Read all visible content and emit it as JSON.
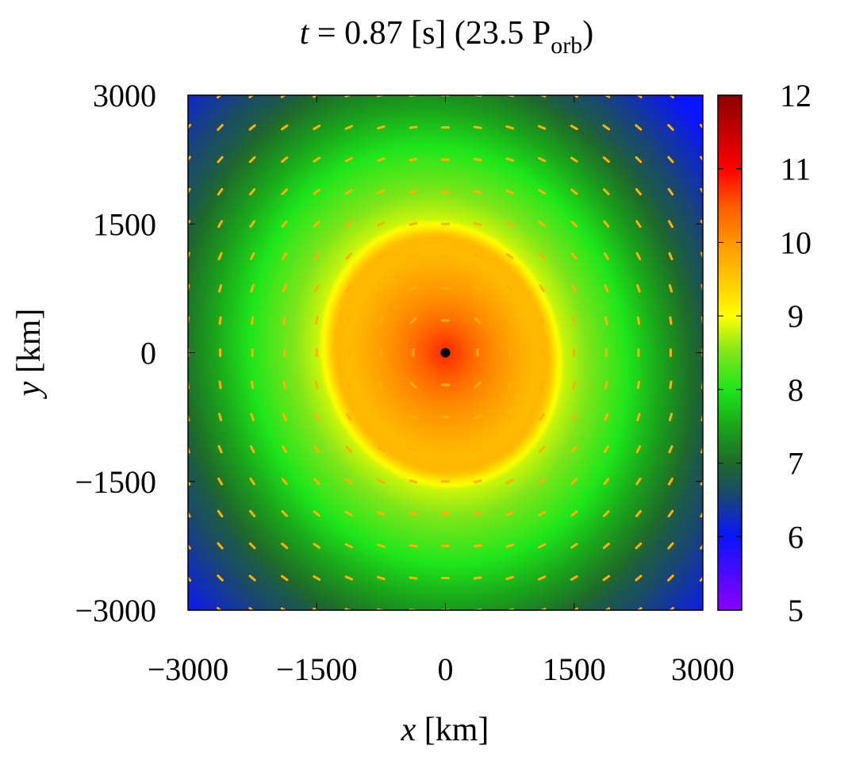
{
  "chart_data": {
    "type": "heatmap",
    "title": {
      "t_symbol": "t",
      "equals": " = 0.87 [s] (23.5 P",
      "subscript": "orb",
      "close": ")"
    },
    "xlabel": {
      "var": "x",
      "unit": " [km]"
    },
    "ylabel": {
      "var": "y",
      "unit": " [km]"
    },
    "xlim": [
      -3000,
      3000
    ],
    "ylim": [
      -3000,
      3000
    ],
    "x_ticks": [
      -3000,
      -1500,
      0,
      1500,
      3000
    ],
    "y_ticks": [
      -3000,
      -1500,
      0,
      1500,
      3000
    ],
    "x_tick_labels": [
      "−3000",
      "−1500",
      "0",
      "1500",
      "3000"
    ],
    "y_tick_labels": [
      "−3000",
      "−1500",
      "0",
      "1500",
      "3000"
    ],
    "colorbar": {
      "range": [
        5,
        12
      ],
      "ticks": [
        5,
        6,
        7,
        8,
        9,
        10,
        11,
        12
      ],
      "tick_labels": [
        "5",
        "6",
        "7",
        "8",
        "9",
        "10",
        "11",
        "12"
      ],
      "stops": [
        {
          "value": 5.0,
          "color": "#8b00ff"
        },
        {
          "value": 6.0,
          "color": "#0a14ff"
        },
        {
          "value": 6.6,
          "color": "#1a4a6a"
        },
        {
          "value": 7.0,
          "color": "#1e6a2a"
        },
        {
          "value": 7.5,
          "color": "#1aa51a"
        },
        {
          "value": 8.0,
          "color": "#1ee61a"
        },
        {
          "value": 8.5,
          "color": "#7ce61a"
        },
        {
          "value": 9.0,
          "color": "#ffff00"
        },
        {
          "value": 9.5,
          "color": "#ffc800"
        },
        {
          "value": 10.0,
          "color": "#ff9600"
        },
        {
          "value": 10.5,
          "color": "#ff5a00"
        },
        {
          "value": 11.0,
          "color": "#ff0000"
        },
        {
          "value": 12.0,
          "color": "#8b0000"
        }
      ]
    },
    "field_profile": {
      "description_units": "radius in km vs colorbar value",
      "radial": [
        {
          "r": 0,
          "v": 10.5
        },
        {
          "r": 150,
          "v": 10.4
        },
        {
          "r": 400,
          "v": 10.2
        },
        {
          "r": 800,
          "v": 9.9
        },
        {
          "r": 1150,
          "v": 9.6
        },
        {
          "r": 1350,
          "v": 9.3
        },
        {
          "r": 1500,
          "v": 8.8
        },
        {
          "r": 1800,
          "v": 8.5
        },
        {
          "r": 2300,
          "v": 8.0
        },
        {
          "r": 2800,
          "v": 7.4
        },
        {
          "r": 3300,
          "v": 6.8
        },
        {
          "r": 4300,
          "v": 6.0
        }
      ],
      "center_object": {
        "x": 0,
        "y": 0,
        "color": "#000000"
      }
    },
    "vector_field": {
      "color": "#ffb000",
      "spacing": 375,
      "sense": "counter-clockwise"
    },
    "grid": false,
    "legend": "none"
  }
}
